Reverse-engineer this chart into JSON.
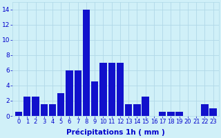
{
  "categories": [
    0,
    1,
    2,
    3,
    4,
    5,
    6,
    7,
    8,
    9,
    10,
    11,
    12,
    13,
    14,
    15,
    16,
    17,
    18,
    19,
    20,
    21,
    22,
    23
  ],
  "values": [
    0.5,
    2.5,
    2.5,
    1.5,
    1.5,
    3.0,
    6.0,
    6.0,
    14.0,
    4.5,
    7.0,
    7.0,
    7.0,
    1.5,
    1.5,
    2.5,
    0.0,
    0.5,
    0.5,
    0.5,
    0.0,
    0.0,
    1.5,
    1.0
  ],
  "bar_color": "#1111cc",
  "background_color": "#d0f0f8",
  "grid_color": "#b0d8e8",
  "xlabel": "Précipitations 1h ( mm )",
  "ylim": [
    0,
    15
  ],
  "yticks": [
    0,
    2,
    4,
    6,
    8,
    10,
    12,
    14
  ],
  "tick_color": "#0000cc",
  "xlabel_color": "#0000cc",
  "tick_fontsize": 6.0,
  "xlabel_fontsize": 7.5
}
